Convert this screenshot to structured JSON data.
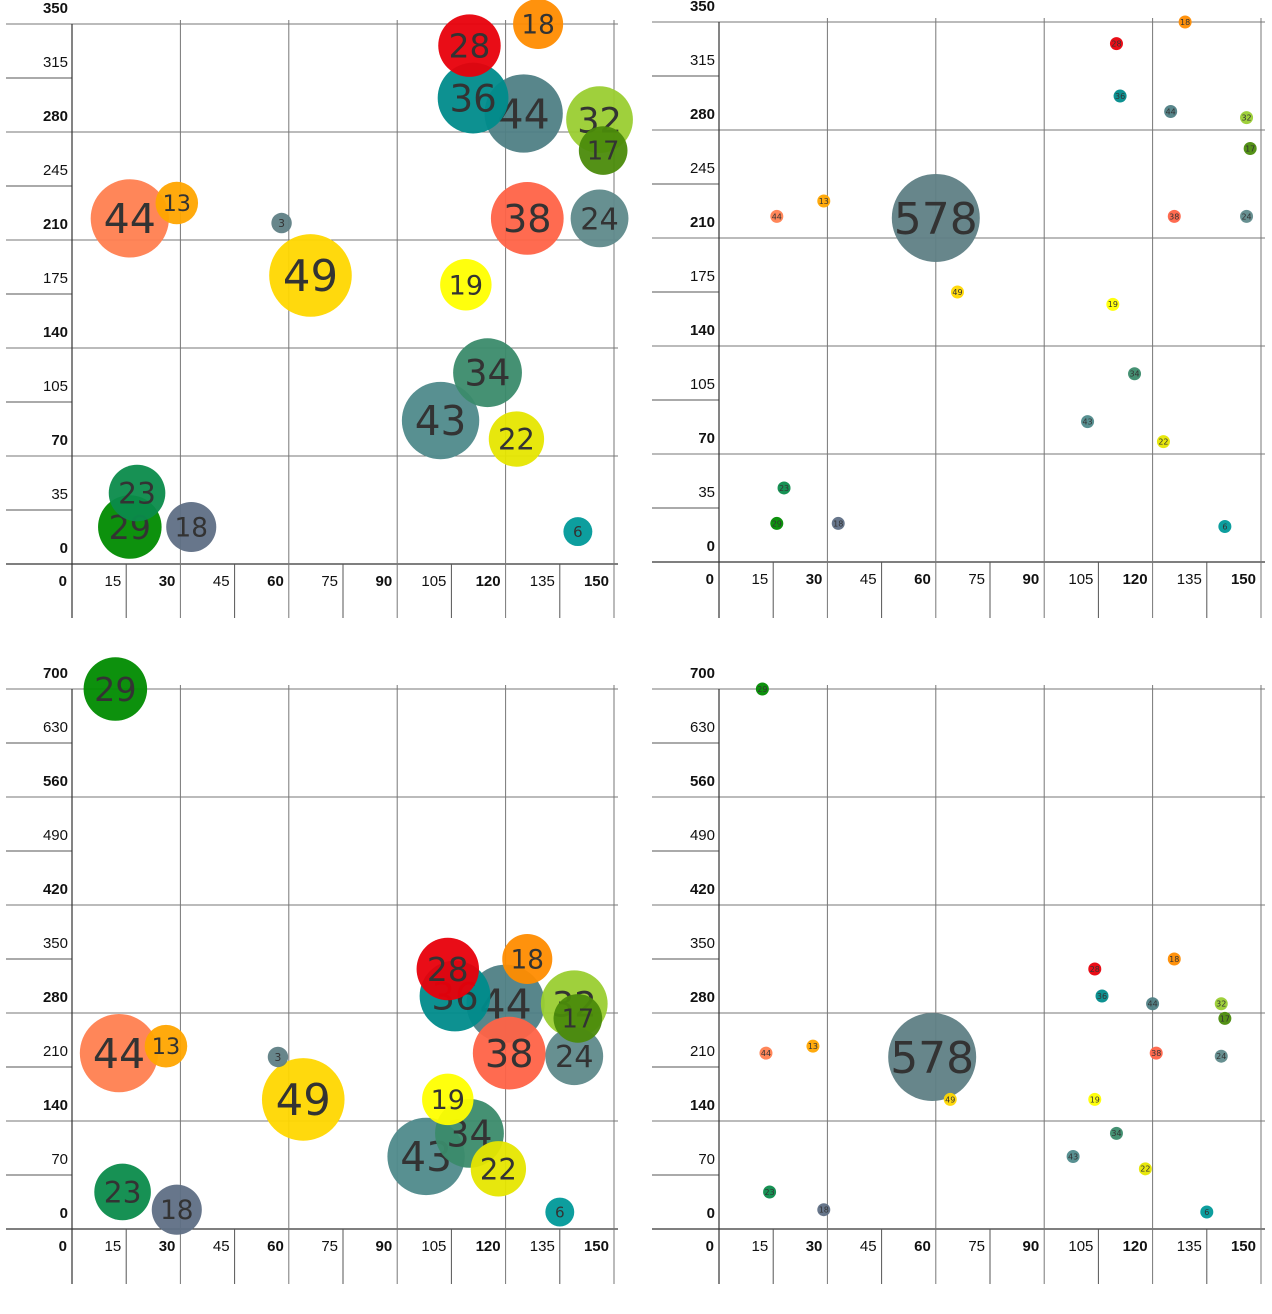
{
  "chart_data": [
    {
      "type": "scatter",
      "name": "top-left-panel",
      "xlim": [
        0,
        150
      ],
      "ylim": [
        0,
        350
      ],
      "x_ticks": [
        0,
        15,
        30,
        45,
        60,
        75,
        90,
        105,
        120,
        135,
        150
      ],
      "x_major_ticks": [
        0,
        30,
        60,
        90,
        120,
        150
      ],
      "y_ticks": [
        0,
        35,
        70,
        105,
        140,
        175,
        210,
        245,
        280,
        315,
        350
      ],
      "y_major_ticks": [
        0,
        70,
        140,
        210,
        280,
        350
      ],
      "size_scale": "proportional",
      "points": [
        {
          "label": "28",
          "x": 110,
          "y": 336,
          "size": 28,
          "color": "#e8000b"
        },
        {
          "label": "18",
          "x": 129,
          "y": 350,
          "size": 18,
          "color": "#ff8c00"
        },
        {
          "label": "36",
          "x": 111,
          "y": 302,
          "size": 36,
          "color": "#008b8b"
        },
        {
          "label": "44",
          "x": 125,
          "y": 292,
          "size": 44,
          "color": "#4f7f85"
        },
        {
          "label": "32",
          "x": 146,
          "y": 288,
          "size": 32,
          "color": "#9acd32"
        },
        {
          "label": "17",
          "x": 147,
          "y": 268,
          "size": 17,
          "color": "#4b8b0b"
        },
        {
          "label": "44",
          "x": 16,
          "y": 224,
          "size": 44,
          "color": "#ff7f50"
        },
        {
          "label": "13",
          "x": 29,
          "y": 234,
          "size": 13,
          "color": "#ffa500"
        },
        {
          "label": "3",
          "x": 58,
          "y": 221,
          "size": 3,
          "color": "#5f7f85"
        },
        {
          "label": "38",
          "x": 126,
          "y": 224,
          "size": 38,
          "color": "#ff6347"
        },
        {
          "label": "24",
          "x": 146,
          "y": 224,
          "size": 24,
          "color": "#5f8a8b"
        },
        {
          "label": "49",
          "x": 66,
          "y": 187,
          "size": 49,
          "color": "#ffd700"
        },
        {
          "label": "19",
          "x": 109,
          "y": 181,
          "size": 19,
          "color": "#ffff00"
        },
        {
          "label": "34",
          "x": 115,
          "y": 124,
          "size": 34,
          "color": "#3b8b6b"
        },
        {
          "label": "43",
          "x": 102,
          "y": 93,
          "size": 43,
          "color": "#4f8a8b"
        },
        {
          "label": "22",
          "x": 123,
          "y": 81,
          "size": 22,
          "color": "#e6e600"
        },
        {
          "label": "23",
          "x": 18,
          "y": 46,
          "size": 23,
          "color": "#0b8b4b"
        },
        {
          "label": "29",
          "x": 16,
          "y": 24,
          "size": 29,
          "color": "#008b00"
        },
        {
          "label": "18",
          "x": 33,
          "y": 24,
          "size": 18,
          "color": "#5f6f85"
        },
        {
          "label": "6",
          "x": 140,
          "y": 21,
          "size": 6,
          "color": "#009999"
        }
      ]
    },
    {
      "type": "scatter",
      "name": "top-right-panel",
      "xlim": [
        0,
        150
      ],
      "ylim": [
        0,
        350
      ],
      "x_ticks": [
        0,
        15,
        30,
        45,
        60,
        75,
        90,
        105,
        120,
        135,
        150
      ],
      "x_major_ticks": [
        0,
        30,
        60,
        90,
        120,
        150
      ],
      "y_ticks": [
        0,
        35,
        70,
        105,
        140,
        175,
        210,
        245,
        280,
        315,
        350
      ],
      "y_major_ticks": [
        0,
        70,
        140,
        210,
        280,
        350
      ],
      "size_scale": "proportional",
      "points": [
        {
          "label": "28",
          "x": 110,
          "y": 336,
          "size": 28,
          "color": "#e8000b"
        },
        {
          "label": "18",
          "x": 129,
          "y": 350,
          "size": 18,
          "color": "#ff8c00"
        },
        {
          "label": "36",
          "x": 111,
          "y": 302,
          "size": 36,
          "color": "#008b8b"
        },
        {
          "label": "44",
          "x": 125,
          "y": 292,
          "size": 44,
          "color": "#4f7f85"
        },
        {
          "label": "32",
          "x": 146,
          "y": 288,
          "size": 32,
          "color": "#9acd32"
        },
        {
          "label": "17",
          "x": 147,
          "y": 268,
          "size": 17,
          "color": "#4b8b0b"
        },
        {
          "label": "44",
          "x": 16,
          "y": 224,
          "size": 44,
          "color": "#ff7f50"
        },
        {
          "label": "13",
          "x": 29,
          "y": 234,
          "size": 13,
          "color": "#ffa500"
        },
        {
          "label": "578",
          "x": 60,
          "y": 223,
          "size": 578,
          "color": "#5f7f85"
        },
        {
          "label": "38",
          "x": 126,
          "y": 224,
          "size": 38,
          "color": "#ff6347"
        },
        {
          "label": "24",
          "x": 146,
          "y": 224,
          "size": 24,
          "color": "#5f8a8b"
        },
        {
          "label": "49",
          "x": 66,
          "y": 175,
          "size": 49,
          "color": "#ffd700"
        },
        {
          "label": "19",
          "x": 109,
          "y": 167,
          "size": 19,
          "color": "#ffff00"
        },
        {
          "label": "34",
          "x": 115,
          "y": 122,
          "size": 34,
          "color": "#3b8b6b"
        },
        {
          "label": "43",
          "x": 102,
          "y": 91,
          "size": 43,
          "color": "#4f8a8b"
        },
        {
          "label": "22",
          "x": 123,
          "y": 78,
          "size": 22,
          "color": "#e6e600"
        },
        {
          "label": "23",
          "x": 18,
          "y": 48,
          "size": 23,
          "color": "#0b8b4b"
        },
        {
          "label": "29",
          "x": 16,
          "y": 25,
          "size": 29,
          "color": "#008b00"
        },
        {
          "label": "18",
          "x": 33,
          "y": 25,
          "size": 18,
          "color": "#5f6f85"
        },
        {
          "label": "6",
          "x": 140,
          "y": 23,
          "size": 6,
          "color": "#009999"
        }
      ]
    },
    {
      "type": "scatter",
      "name": "bottom-left-panel",
      "xlim": [
        0,
        150
      ],
      "ylim": [
        0,
        700
      ],
      "x_ticks": [
        0,
        15,
        30,
        45,
        60,
        75,
        90,
        105,
        120,
        135,
        150
      ],
      "x_major_ticks": [
        0,
        30,
        60,
        90,
        120,
        150
      ],
      "y_ticks": [
        0,
        70,
        140,
        210,
        280,
        350,
        420,
        490,
        560,
        630,
        700
      ],
      "y_major_ticks": [
        0,
        140,
        280,
        420,
        560,
        700
      ],
      "size_scale": "proportional",
      "points": [
        {
          "label": "29",
          "x": 12,
          "y": 700,
          "size": 29,
          "color": "#008b00"
        },
        {
          "label": "28",
          "x": 104,
          "y": 337,
          "size": 28,
          "color": "#e8000b"
        },
        {
          "label": "18",
          "x": 126,
          "y": 350,
          "size": 18,
          "color": "#ff8c00"
        },
        {
          "label": "36",
          "x": 106,
          "y": 302,
          "size": 36,
          "color": "#008b8b"
        },
        {
          "label": "44",
          "x": 120,
          "y": 292,
          "size": 44,
          "color": "#4f7f85"
        },
        {
          "label": "32",
          "x": 139,
          "y": 292,
          "size": 32,
          "color": "#9acd32"
        },
        {
          "label": "17",
          "x": 140,
          "y": 273,
          "size": 17,
          "color": "#4b8b0b"
        },
        {
          "label": "44",
          "x": 13,
          "y": 228,
          "size": 44,
          "color": "#ff7f50"
        },
        {
          "label": "13",
          "x": 26,
          "y": 237,
          "size": 13,
          "color": "#ffa500"
        },
        {
          "label": "3",
          "x": 57,
          "y": 223,
          "size": 3,
          "color": "#5f7f85"
        },
        {
          "label": "38",
          "x": 121,
          "y": 228,
          "size": 38,
          "color": "#ff6347"
        },
        {
          "label": "24",
          "x": 139,
          "y": 224,
          "size": 24,
          "color": "#5f8a8b"
        },
        {
          "label": "49",
          "x": 64,
          "y": 168,
          "size": 49,
          "color": "#ffd700"
        },
        {
          "label": "19",
          "x": 104,
          "y": 168,
          "size": 19,
          "color": "#ffff00"
        },
        {
          "label": "34",
          "x": 110,
          "y": 124,
          "size": 34,
          "color": "#3b8b6b"
        },
        {
          "label": "43",
          "x": 98,
          "y": 94,
          "size": 43,
          "color": "#4f8a8b"
        },
        {
          "label": "22",
          "x": 118,
          "y": 78,
          "size": 22,
          "color": "#e6e600"
        },
        {
          "label": "23",
          "x": 14,
          "y": 48,
          "size": 23,
          "color": "#0b8b4b"
        },
        {
          "label": "18",
          "x": 29,
          "y": 25,
          "size": 18,
          "color": "#5f6f85"
        },
        {
          "label": "6",
          "x": 135,
          "y": 22,
          "size": 6,
          "color": "#009999"
        }
      ]
    },
    {
      "type": "scatter",
      "name": "bottom-right-panel",
      "xlim": [
        0,
        150
      ],
      "ylim": [
        0,
        700
      ],
      "x_ticks": [
        0,
        15,
        30,
        45,
        60,
        75,
        90,
        105,
        120,
        135,
        150
      ],
      "x_major_ticks": [
        0,
        30,
        60,
        90,
        120,
        150
      ],
      "y_ticks": [
        0,
        70,
        140,
        210,
        280,
        350,
        420,
        490,
        560,
        630,
        700
      ],
      "y_major_ticks": [
        0,
        140,
        280,
        420,
        560,
        700
      ],
      "size_scale": "proportional",
      "points": [
        {
          "label": "29",
          "x": 12,
          "y": 700,
          "size": 29,
          "color": "#008b00"
        },
        {
          "label": "28",
          "x": 104,
          "y": 337,
          "size": 28,
          "color": "#e8000b"
        },
        {
          "label": "18",
          "x": 126,
          "y": 350,
          "size": 18,
          "color": "#ff8c00"
        },
        {
          "label": "36",
          "x": 106,
          "y": 302,
          "size": 36,
          "color": "#008b8b"
        },
        {
          "label": "44",
          "x": 120,
          "y": 292,
          "size": 44,
          "color": "#4f7f85"
        },
        {
          "label": "32",
          "x": 139,
          "y": 292,
          "size": 32,
          "color": "#9acd32"
        },
        {
          "label": "17",
          "x": 140,
          "y": 273,
          "size": 17,
          "color": "#4b8b0b"
        },
        {
          "label": "44",
          "x": 13,
          "y": 228,
          "size": 44,
          "color": "#ff7f50"
        },
        {
          "label": "13",
          "x": 26,
          "y": 237,
          "size": 13,
          "color": "#ffa500"
        },
        {
          "label": "578",
          "x": 59,
          "y": 223,
          "size": 578,
          "color": "#5f7f85"
        },
        {
          "label": "38",
          "x": 121,
          "y": 228,
          "size": 38,
          "color": "#ff6347"
        },
        {
          "label": "24",
          "x": 139,
          "y": 224,
          "size": 24,
          "color": "#5f8a8b"
        },
        {
          "label": "49",
          "x": 64,
          "y": 168,
          "size": 49,
          "color": "#ffd700"
        },
        {
          "label": "19",
          "x": 104,
          "y": 168,
          "size": 19,
          "color": "#ffff00"
        },
        {
          "label": "34",
          "x": 110,
          "y": 124,
          "size": 34,
          "color": "#3b8b6b"
        },
        {
          "label": "43",
          "x": 98,
          "y": 94,
          "size": 43,
          "color": "#4f8a8b"
        },
        {
          "label": "22",
          "x": 118,
          "y": 78,
          "size": 22,
          "color": "#e6e600"
        },
        {
          "label": "23",
          "x": 14,
          "y": 48,
          "size": 23,
          "color": "#0b8b4b"
        },
        {
          "label": "18",
          "x": 29,
          "y": 25,
          "size": 18,
          "color": "#5f6f85"
        },
        {
          "label": "6",
          "x": 135,
          "y": 22,
          "size": 6,
          "color": "#009999"
        }
      ]
    }
  ]
}
